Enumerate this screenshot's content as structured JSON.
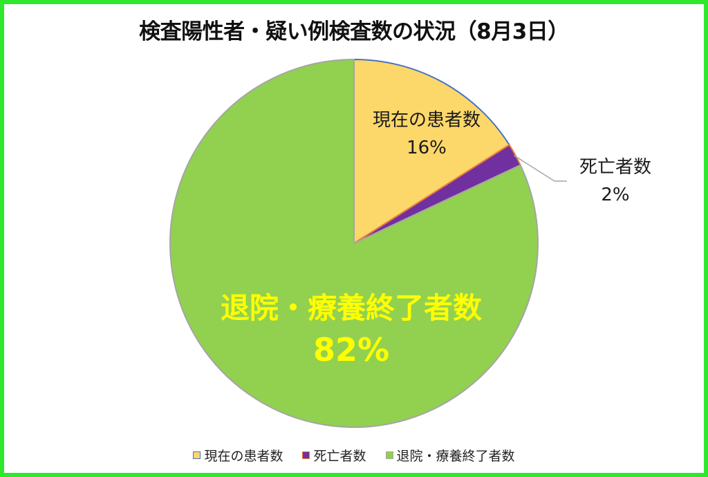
{
  "chart_data": {
    "type": "pie",
    "title": "検査陽性者・疑い例検査数の状況（8月3日）",
    "slices": [
      {
        "label": "現在の患者数",
        "value": 16,
        "value_label": "16%",
        "color": "#fcd769",
        "edge": "#4472c4",
        "label_color": "#1a1a1a"
      },
      {
        "label": "死亡者数",
        "value": 2,
        "value_label": "2%",
        "color": "#7030a0",
        "edge": "#ed7d31",
        "label_color": "#1a1a1a"
      },
      {
        "label": "退院・療養終了者数",
        "value": 82,
        "value_label": "82%",
        "color": "#92d050",
        "edge": "#a5a5a5",
        "label_color": "#ffff00"
      }
    ],
    "legend": {
      "position": "bottom"
    }
  },
  "colors": {
    "frame": "#2ee82e",
    "background": "#ffffff"
  }
}
